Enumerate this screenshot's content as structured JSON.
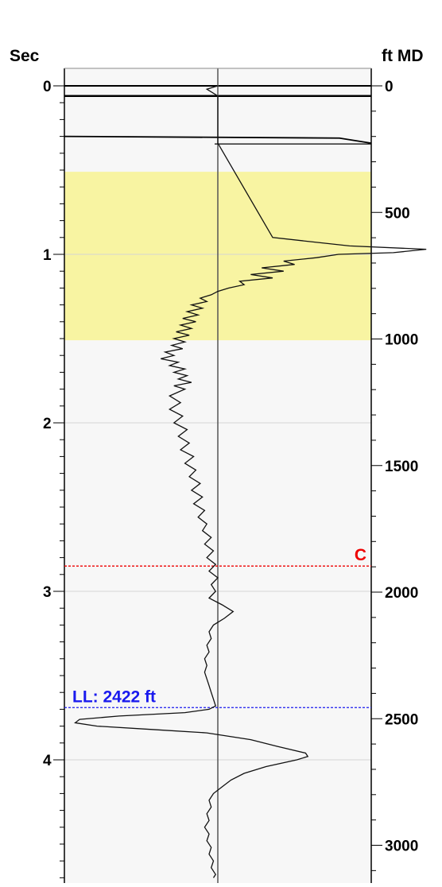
{
  "chart_data": {
    "type": "line",
    "title": "",
    "left_axis": {
      "title": "Sec",
      "range": [
        0,
        4.7
      ],
      "major_ticks": [
        0,
        1,
        2,
        3,
        4
      ],
      "tick_labels": [
        "0",
        "1",
        "2",
        "3",
        "4"
      ]
    },
    "right_axis": {
      "title": "ft MD",
      "range": [
        0,
        3100
      ],
      "major_ticks": [
        0,
        500,
        1000,
        1500,
        2000,
        2500,
        3000
      ],
      "tick_labels": [
        "0",
        "500",
        "1000",
        "1500",
        "2000",
        "2500",
        "3000"
      ],
      "minor_tick_step": 100
    },
    "grid": true,
    "shaded_zone": {
      "from_sec": 0.51,
      "to_sec": 1.51,
      "color": "#f8f4a2"
    },
    "markers": [
      {
        "label": "C",
        "sec": 2.85,
        "color": "#ee0000",
        "label_align": "right"
      },
      {
        "label": "LL: 2422 ft",
        "sec": 3.69,
        "color": "#1a1aee",
        "label_align": "left"
      }
    ],
    "series": [
      {
        "points": [
          [
            0.0,
            0.0
          ],
          [
            0.02,
            -0.05
          ],
          [
            0.06,
            0.0
          ],
          [
            0.08,
            0.0
          ],
          [
            0.12,
            0.0
          ],
          [
            0.3,
            0.0
          ],
          [
            0.34,
            0.0
          ],
          [
            0.9,
            0.25
          ],
          [
            0.95,
            0.6
          ],
          [
            0.97,
            0.95
          ],
          [
            0.99,
            0.8
          ],
          [
            1.0,
            0.55
          ],
          [
            1.02,
            0.45
          ],
          [
            1.04,
            0.3
          ],
          [
            1.06,
            0.35
          ],
          [
            1.08,
            0.2
          ],
          [
            1.1,
            0.3
          ],
          [
            1.12,
            0.15
          ],
          [
            1.14,
            0.25
          ],
          [
            1.16,
            0.1
          ],
          [
            1.18,
            0.12
          ],
          [
            1.2,
            0.05
          ],
          [
            1.22,
            0.0
          ],
          [
            1.24,
            -0.03
          ],
          [
            1.26,
            -0.08
          ],
          [
            1.28,
            -0.05
          ],
          [
            1.3,
            -0.12
          ],
          [
            1.32,
            -0.07
          ],
          [
            1.34,
            -0.14
          ],
          [
            1.36,
            -0.09
          ],
          [
            1.38,
            -0.16
          ],
          [
            1.4,
            -0.1
          ],
          [
            1.42,
            -0.17
          ],
          [
            1.44,
            -0.12
          ],
          [
            1.46,
            -0.19
          ],
          [
            1.48,
            -0.13
          ],
          [
            1.5,
            -0.2
          ],
          [
            1.52,
            -0.15
          ],
          [
            1.54,
            -0.21
          ],
          [
            1.56,
            -0.16
          ],
          [
            1.58,
            -0.24
          ],
          [
            1.6,
            -0.2
          ],
          [
            1.62,
            -0.26
          ],
          [
            1.64,
            -0.18
          ],
          [
            1.66,
            -0.22
          ],
          [
            1.68,
            -0.15
          ],
          [
            1.7,
            -0.2
          ],
          [
            1.72,
            -0.14
          ],
          [
            1.74,
            -0.18
          ],
          [
            1.76,
            -0.12
          ],
          [
            1.78,
            -0.2
          ],
          [
            1.8,
            -0.15
          ],
          [
            1.84,
            -0.22
          ],
          [
            1.88,
            -0.17
          ],
          [
            1.92,
            -0.22
          ],
          [
            1.96,
            -0.16
          ],
          [
            2.0,
            -0.2
          ],
          [
            2.04,
            -0.14
          ],
          [
            2.08,
            -0.18
          ],
          [
            2.12,
            -0.13
          ],
          [
            2.16,
            -0.17
          ],
          [
            2.2,
            -0.11
          ],
          [
            2.24,
            -0.15
          ],
          [
            2.28,
            -0.1
          ],
          [
            2.32,
            -0.13
          ],
          [
            2.36,
            -0.08
          ],
          [
            2.4,
            -0.12
          ],
          [
            2.44,
            -0.07
          ],
          [
            2.48,
            -0.11
          ],
          [
            2.52,
            -0.06
          ],
          [
            2.56,
            -0.09
          ],
          [
            2.6,
            -0.05
          ],
          [
            2.64,
            -0.07
          ],
          [
            2.68,
            -0.03
          ],
          [
            2.72,
            -0.06
          ],
          [
            2.76,
            -0.02
          ],
          [
            2.8,
            -0.05
          ],
          [
            2.84,
            -0.01
          ],
          [
            2.88,
            -0.04
          ],
          [
            2.92,
            0.0
          ],
          [
            2.96,
            -0.03
          ],
          [
            3.0,
            -0.01
          ],
          [
            3.04,
            -0.04
          ],
          [
            3.08,
            0.02
          ],
          [
            3.12,
            0.07
          ],
          [
            3.16,
            0.03
          ],
          [
            3.2,
            -0.02
          ],
          [
            3.24,
            -0.04
          ],
          [
            3.28,
            -0.03
          ],
          [
            3.32,
            -0.05
          ],
          [
            3.36,
            -0.04
          ],
          [
            3.4,
            -0.06
          ],
          [
            3.44,
            -0.05
          ],
          [
            3.48,
            -0.06
          ],
          [
            3.52,
            -0.05
          ],
          [
            3.56,
            -0.04
          ],
          [
            3.6,
            -0.03
          ],
          [
            3.64,
            -0.02
          ],
          [
            3.68,
            -0.01
          ],
          [
            3.7,
            -0.04
          ],
          [
            3.72,
            -0.15
          ],
          [
            3.74,
            -0.45
          ],
          [
            3.76,
            -0.63
          ],
          [
            3.78,
            -0.65
          ],
          [
            3.8,
            -0.55
          ],
          [
            3.82,
            -0.3
          ],
          [
            3.84,
            -0.05
          ],
          [
            3.88,
            0.15
          ],
          [
            3.92,
            0.27
          ],
          [
            3.96,
            0.4
          ],
          [
            3.98,
            0.41
          ],
          [
            4.0,
            0.36
          ],
          [
            4.04,
            0.22
          ],
          [
            4.08,
            0.12
          ],
          [
            4.12,
            0.06
          ],
          [
            4.16,
            0.02
          ],
          [
            4.2,
            -0.02
          ],
          [
            4.24,
            -0.04
          ],
          [
            4.28,
            -0.03
          ],
          [
            4.32,
            -0.05
          ],
          [
            4.36,
            -0.04
          ],
          [
            4.4,
            -0.06
          ],
          [
            4.44,
            -0.04
          ],
          [
            4.48,
            -0.05
          ],
          [
            4.52,
            -0.03
          ],
          [
            4.56,
            -0.04
          ],
          [
            4.6,
            -0.02
          ],
          [
            4.64,
            -0.03
          ],
          [
            4.68,
            -0.01
          ],
          [
            4.7,
            -0.02
          ]
        ]
      }
    ]
  }
}
